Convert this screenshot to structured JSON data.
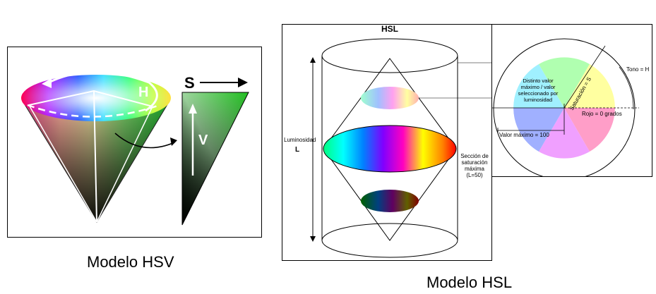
{
  "hsv": {
    "caption": "Modelo HSV",
    "label_h": "H",
    "label_s": "S",
    "label_v": "V"
  },
  "hsl": {
    "caption": "Modelo HSL",
    "title": "HSL",
    "luminosity_label": "Luminosidad",
    "luminosity_letter": "L",
    "max_saturation_label": [
      "Sección de",
      "saturación",
      "máxima",
      "(L=50)"
    ],
    "inset": {
      "distinct_value_label": [
        "Distinto valor",
        "máximo / valor",
        "seleccionado por",
        "luminosidad"
      ],
      "max_value_label": "Valor máximo = 100",
      "saturation_label": "Saturación = S",
      "red_label": "Rojo = 0 grados",
      "hue_label": "Tono = H"
    }
  }
}
